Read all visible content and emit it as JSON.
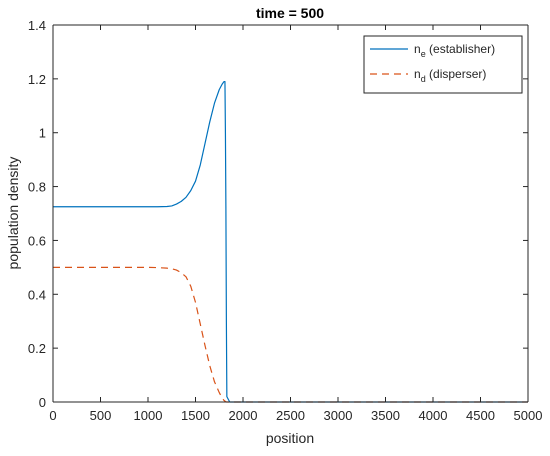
{
  "chart_data": {
    "type": "line",
    "title": "time = 500",
    "xlabel": "position",
    "ylabel": "population density",
    "xlim": [
      0,
      5000
    ],
    "ylim": [
      0,
      1.4
    ],
    "xticks": [
      0,
      500,
      1000,
      1500,
      2000,
      2500,
      3000,
      3500,
      4000,
      4500,
      5000
    ],
    "xtick_labels": [
      "0",
      "500",
      "1000",
      "1500",
      "2000",
      "2500",
      "3000",
      "3500",
      "4000",
      "4500",
      "5000"
    ],
    "yticks": [
      0,
      0.2,
      0.4,
      0.6,
      0.8,
      1.0,
      1.2,
      1.4
    ],
    "ytick_labels": [
      "0",
      "0.2",
      "0.4",
      "0.6",
      "0.8",
      "1",
      "1.2",
      "1.4"
    ],
    "grid": false,
    "legend_position": "top-right",
    "series": [
      {
        "name": "n_e (establisher)",
        "legend_base": "n",
        "legend_sub": "e",
        "legend_rest": " (establisher)",
        "color": "#0072BD",
        "style": "solid",
        "x": [
          0,
          200,
          400,
          600,
          800,
          1000,
          1100,
          1200,
          1250,
          1300,
          1350,
          1400,
          1450,
          1500,
          1550,
          1600,
          1650,
          1700,
          1750,
          1780,
          1800,
          1810,
          1815,
          1820,
          1825,
          1830,
          1860,
          2000,
          3000,
          4000,
          5000
        ],
        "y": [
          0.725,
          0.725,
          0.725,
          0.725,
          0.725,
          0.725,
          0.725,
          0.726,
          0.728,
          0.735,
          0.745,
          0.76,
          0.785,
          0.82,
          0.88,
          0.96,
          1.04,
          1.11,
          1.16,
          1.18,
          1.19,
          1.19,
          1.0,
          0.72,
          0.3,
          0.02,
          0.0,
          0.0,
          0.0,
          0.0,
          0.0
        ]
      },
      {
        "name": "n_d (disperser)",
        "legend_base": "n",
        "legend_sub": "d",
        "legend_rest": " (disperser)",
        "color": "#D95319",
        "style": "dashed",
        "x": [
          0,
          200,
          400,
          600,
          800,
          1000,
          1100,
          1200,
          1250,
          1300,
          1350,
          1400,
          1450,
          1500,
          1550,
          1600,
          1650,
          1700,
          1750,
          1780,
          1800,
          1815,
          1825,
          1860,
          2000,
          3000,
          4000,
          5000
        ],
        "y": [
          0.5,
          0.5,
          0.5,
          0.5,
          0.5,
          0.5,
          0.499,
          0.497,
          0.495,
          0.49,
          0.48,
          0.465,
          0.43,
          0.37,
          0.29,
          0.21,
          0.135,
          0.075,
          0.035,
          0.015,
          0.006,
          0.002,
          0.0,
          0.0,
          0.0,
          0.0,
          0.0,
          0.0
        ]
      }
    ]
  }
}
